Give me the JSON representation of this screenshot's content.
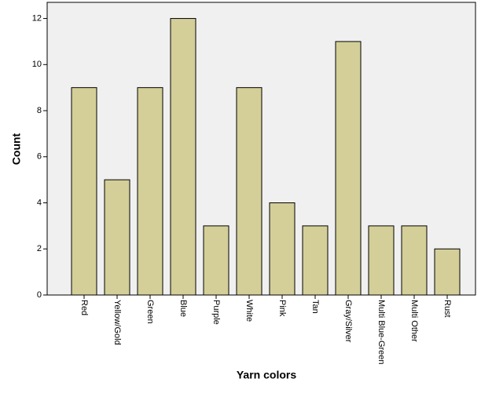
{
  "chart_data": {
    "type": "bar",
    "x_label": "Yarn colors",
    "y_label": "Count",
    "categories": [
      "Red",
      "Yellow/Gold",
      "Green",
      "Blue",
      "Purple",
      "White",
      "Pink",
      "Tan",
      "Gray/Silver",
      "Multi Blue-Green",
      "Multi Other",
      "Rust"
    ],
    "values": [
      9,
      5,
      9,
      12,
      3,
      9,
      4,
      3,
      11,
      3,
      3,
      2
    ],
    "color": "#d4cf98",
    "ylim": [
      0,
      12.7
    ],
    "yticks": [
      0,
      2,
      4,
      6,
      8,
      10,
      12
    ]
  }
}
